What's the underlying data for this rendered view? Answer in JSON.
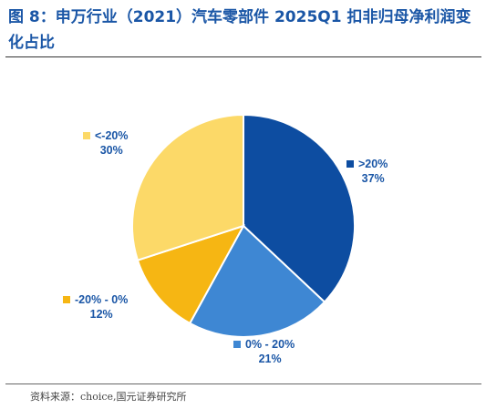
{
  "figure": {
    "title": "图 8：申万行业（2021）汽车零部件 2025Q1 扣非归母净利润变化占比",
    "source": "资料来源：choice,国元证券研究所"
  },
  "chart_data": {
    "type": "pie",
    "title": "",
    "slices": [
      {
        "label": ">20%",
        "value": 37,
        "value_label": "37%",
        "color": "#0d4da1",
        "label_color": "#1a56a6"
      },
      {
        "label": "0% - 20%",
        "value": 21,
        "value_label": "21%",
        "color": "#3e87d3",
        "label_color": "#1a56a6"
      },
      {
        "label": "-20% - 0%",
        "value": 12,
        "value_label": "12%",
        "color": "#f6b613",
        "label_color": "#1a56a6"
      },
      {
        "label": "<-20%",
        "value": 30,
        "value_label": "30%",
        "color": "#fcd968",
        "label_color": "#1a56a6"
      }
    ],
    "start_angle": "12 o'clock",
    "direction": "clockwise",
    "legend": "none, labels beside slices"
  }
}
